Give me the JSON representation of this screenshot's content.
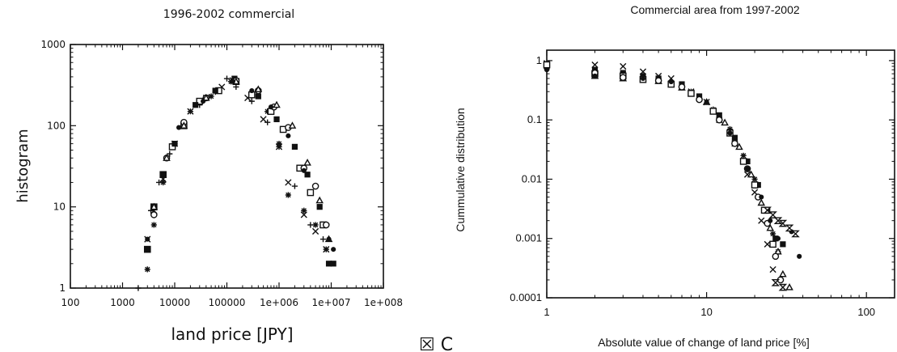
{
  "chart_data": [
    {
      "type": "scatter",
      "title": "1996-2002 commercial",
      "xlabel": "land price [JPY]",
      "ylabel": "histogram",
      "xscale": "log",
      "yscale": "log",
      "xlim": [
        100,
        100000000
      ],
      "ylim": [
        1,
        1000
      ],
      "xticks": [
        "100",
        "1000",
        "10000",
        "100000",
        "1e+006",
        "1e+007",
        "1e+008"
      ],
      "yticks": [
        "1",
        "10",
        "100",
        "1000"
      ],
      "grid": false,
      "legend": "none",
      "marker_colors": [
        "#111111"
      ],
      "series": [
        {
          "marker": "plus",
          "points": [
            [
              2000,
              1
            ],
            [
              3500,
              9
            ],
            [
              5000,
              20
            ],
            [
              8000,
              45
            ],
            [
              15000,
              110
            ],
            [
              30000,
              180
            ],
            [
              60000,
              260
            ],
            [
              100000,
              380
            ],
            [
              150000,
              300
            ],
            [
              300000,
              200
            ],
            [
              600000,
              110
            ],
            [
              1000000,
              55
            ],
            [
              2000000,
              18
            ],
            [
              4000000,
              6
            ],
            [
              7000000,
              4
            ],
            [
              10000000,
              2
            ]
          ]
        },
        {
          "marker": "x",
          "points": [
            [
              3000,
              4
            ],
            [
              4000,
              9
            ],
            [
              6000,
              22
            ],
            [
              10000,
              60
            ],
            [
              20000,
              150
            ],
            [
              40000,
              220
            ],
            [
              80000,
              300
            ],
            [
              130000,
              360
            ],
            [
              250000,
              220
            ],
            [
              500000,
              120
            ],
            [
              1000000,
              55
            ],
            [
              1500000,
              20
            ],
            [
              3000000,
              8
            ],
            [
              5000000,
              5
            ],
            [
              8000000,
              3
            ]
          ]
        },
        {
          "marker": "asterisk",
          "points": [
            [
              3000,
              1.7
            ],
            [
              4000,
              6
            ],
            [
              6000,
              20
            ],
            [
              10000,
              60
            ],
            [
              20000,
              150
            ],
            [
              50000,
              230
            ],
            [
              120000,
              350
            ],
            [
              300000,
              240
            ],
            [
              600000,
              150
            ],
            [
              1000000,
              60
            ],
            [
              1500000,
              14
            ],
            [
              3000000,
              9
            ],
            [
              5000000,
              6
            ],
            [
              8000000,
              3
            ]
          ]
        },
        {
          "marker": "square",
          "points": [
            [
              3000,
              3
            ],
            [
              4000,
              10
            ],
            [
              6000,
              25
            ],
            [
              9000,
              55
            ],
            [
              15000,
              100
            ],
            [
              30000,
              200
            ],
            [
              70000,
              270
            ],
            [
              150000,
              350
            ],
            [
              300000,
              240
            ],
            [
              700000,
              150
            ],
            [
              1200000,
              90
            ],
            [
              2500000,
              30
            ],
            [
              4000000,
              15
            ],
            [
              7000000,
              6
            ]
          ]
        },
        {
          "marker": "filled-square",
          "points": [
            [
              3000,
              3
            ],
            [
              4000,
              10
            ],
            [
              6000,
              25
            ],
            [
              10000,
              60
            ],
            [
              25000,
              180
            ],
            [
              60000,
              270
            ],
            [
              140000,
              380
            ],
            [
              400000,
              230
            ],
            [
              900000,
              120
            ],
            [
              2000000,
              55
            ],
            [
              3500000,
              25
            ],
            [
              6000000,
              10
            ],
            [
              9000000,
              2
            ],
            [
              11000000,
              2
            ]
          ]
        },
        {
          "marker": "circle",
          "points": [
            [
              4000,
              8
            ],
            [
              7000,
              40
            ],
            [
              15000,
              110
            ],
            [
              40000,
              220
            ],
            [
              150000,
              360
            ],
            [
              400000,
              270
            ],
            [
              800000,
              170
            ],
            [
              1500000,
              95
            ],
            [
              3000000,
              30
            ],
            [
              5000000,
              18
            ],
            [
              8000000,
              6
            ]
          ]
        },
        {
          "marker": "triangle",
          "points": [
            [
              4000,
              10
            ],
            [
              7000,
              40
            ],
            [
              15000,
              100
            ],
            [
              40000,
              220
            ],
            [
              150000,
              350
            ],
            [
              400000,
              280
            ],
            [
              900000,
              180
            ],
            [
              1800000,
              100
            ],
            [
              3500000,
              35
            ],
            [
              6000000,
              12
            ],
            [
              9000000,
              4
            ]
          ]
        },
        {
          "marker": "filled-circle",
          "points": [
            [
              3000,
              4
            ],
            [
              6000,
              25
            ],
            [
              12000,
              95
            ],
            [
              35000,
              200
            ],
            [
              130000,
              350
            ],
            [
              300000,
              270
            ],
            [
              700000,
              170
            ],
            [
              1500000,
              75
            ],
            [
              3000000,
              28
            ],
            [
              6000000,
              10
            ],
            [
              9000000,
              4
            ],
            [
              11000000,
              3
            ]
          ]
        }
      ]
    },
    {
      "type": "scatter",
      "title": "Commercial area from 1997-2002",
      "xlabel": "Absolute value of change of land price [%]",
      "ylabel": "Cummulative distribution",
      "xscale": "log",
      "yscale": "log",
      "xlim": [
        1,
        150
      ],
      "ylim": [
        0.0001,
        1.5
      ],
      "xticks": [
        "1",
        "10",
        "100"
      ],
      "yticks": [
        "0.0001",
        "0.001",
        "0.01",
        "0.1",
        "1"
      ],
      "grid": false,
      "legend": "none",
      "series": [
        {
          "marker": "x",
          "points": [
            [
              1,
              0.9
            ],
            [
              2,
              0.85
            ],
            [
              3,
              0.8
            ],
            [
              4,
              0.65
            ],
            [
              5,
              0.55
            ],
            [
              6,
              0.5
            ],
            [
              8,
              0.3
            ],
            [
              10,
              0.2
            ],
            [
              12,
              0.1
            ],
            [
              15,
              0.04
            ],
            [
              18,
              0.012
            ],
            [
              20,
              0.006
            ],
            [
              22,
              0.002
            ],
            [
              24,
              0.0008
            ],
            [
              26,
              0.0003
            ]
          ]
        },
        {
          "marker": "filled-square",
          "points": [
            [
              1,
              0.8
            ],
            [
              2,
              0.7
            ],
            [
              3,
              0.62
            ],
            [
              4,
              0.55
            ],
            [
              5,
              0.5
            ],
            [
              7,
              0.4
            ],
            [
              9,
              0.25
            ],
            [
              12,
              0.12
            ],
            [
              15,
              0.05
            ],
            [
              18,
              0.02
            ],
            [
              21,
              0.008
            ],
            [
              24,
              0.003
            ],
            [
              27,
              0.001
            ],
            [
              30,
              0.0008
            ]
          ]
        },
        {
          "marker": "asterisk",
          "points": [
            [
              1,
              0.75
            ],
            [
              2,
              0.68
            ],
            [
              3,
              0.6
            ],
            [
              4,
              0.5
            ],
            [
              6,
              0.42
            ],
            [
              8,
              0.3
            ],
            [
              11,
              0.15
            ],
            [
              14,
              0.07
            ],
            [
              17,
              0.025
            ],
            [
              20,
              0.01
            ],
            [
              23,
              0.003
            ],
            [
              26,
              0.0012
            ],
            [
              28,
              0.0006
            ]
          ]
        },
        {
          "marker": "square",
          "points": [
            [
              1,
              0.85
            ],
            [
              2,
              0.6
            ],
            [
              3,
              0.55
            ],
            [
              4,
              0.48
            ],
            [
              6,
              0.4
            ],
            [
              8,
              0.28
            ],
            [
              11,
              0.14
            ],
            [
              14,
              0.06
            ],
            [
              17,
              0.02
            ],
            [
              20,
              0.008
            ],
            [
              23,
              0.003
            ],
            [
              26,
              0.0008
            ]
          ]
        },
        {
          "marker": "triangle",
          "points": [
            [
              2,
              0.55
            ],
            [
              3,
              0.5
            ],
            [
              5,
              0.45
            ],
            [
              7,
              0.35
            ],
            [
              10,
              0.2
            ],
            [
              13,
              0.09
            ],
            [
              16,
              0.035
            ],
            [
              19,
              0.012
            ],
            [
              22,
              0.004
            ],
            [
              25,
              0.0015
            ],
            [
              28,
              0.0006
            ],
            [
              30,
              0.00025
            ],
            [
              33,
              0.00015
            ]
          ]
        },
        {
          "marker": "open-circle",
          "points": [
            [
              2,
              0.62
            ],
            [
              3,
              0.52
            ],
            [
              5,
              0.46
            ],
            [
              7,
              0.36
            ],
            [
              9,
              0.22
            ],
            [
              12,
              0.1
            ],
            [
              15,
              0.04
            ],
            [
              18,
              0.015
            ],
            [
              21,
              0.005
            ],
            [
              24,
              0.0018
            ],
            [
              27,
              0.0005
            ],
            [
              29,
              0.0002
            ]
          ]
        },
        {
          "marker": "filled-circle",
          "points": [
            [
              1,
              0.7
            ],
            [
              2,
              0.55
            ],
            [
              4,
              0.5
            ],
            [
              6,
              0.44
            ],
            [
              10,
              0.2
            ],
            [
              14,
              0.06
            ],
            [
              18,
              0.015
            ],
            [
              22,
              0.005
            ],
            [
              25,
              0.002
            ],
            [
              28,
              0.001
            ],
            [
              34,
              0.0013
            ],
            [
              38,
              0.0005
            ]
          ]
        },
        {
          "marker": "hourglass",
          "points": [
            [
              24,
              0.003
            ],
            [
              26,
              0.0025
            ],
            [
              28,
              0.002
            ],
            [
              30,
              0.0018
            ],
            [
              33,
              0.0015
            ],
            [
              36,
              0.0012
            ],
            [
              27,
              0.00018
            ],
            [
              30,
              0.00015
            ]
          ]
        }
      ]
    }
  ],
  "footer_fragment": "☒ C"
}
